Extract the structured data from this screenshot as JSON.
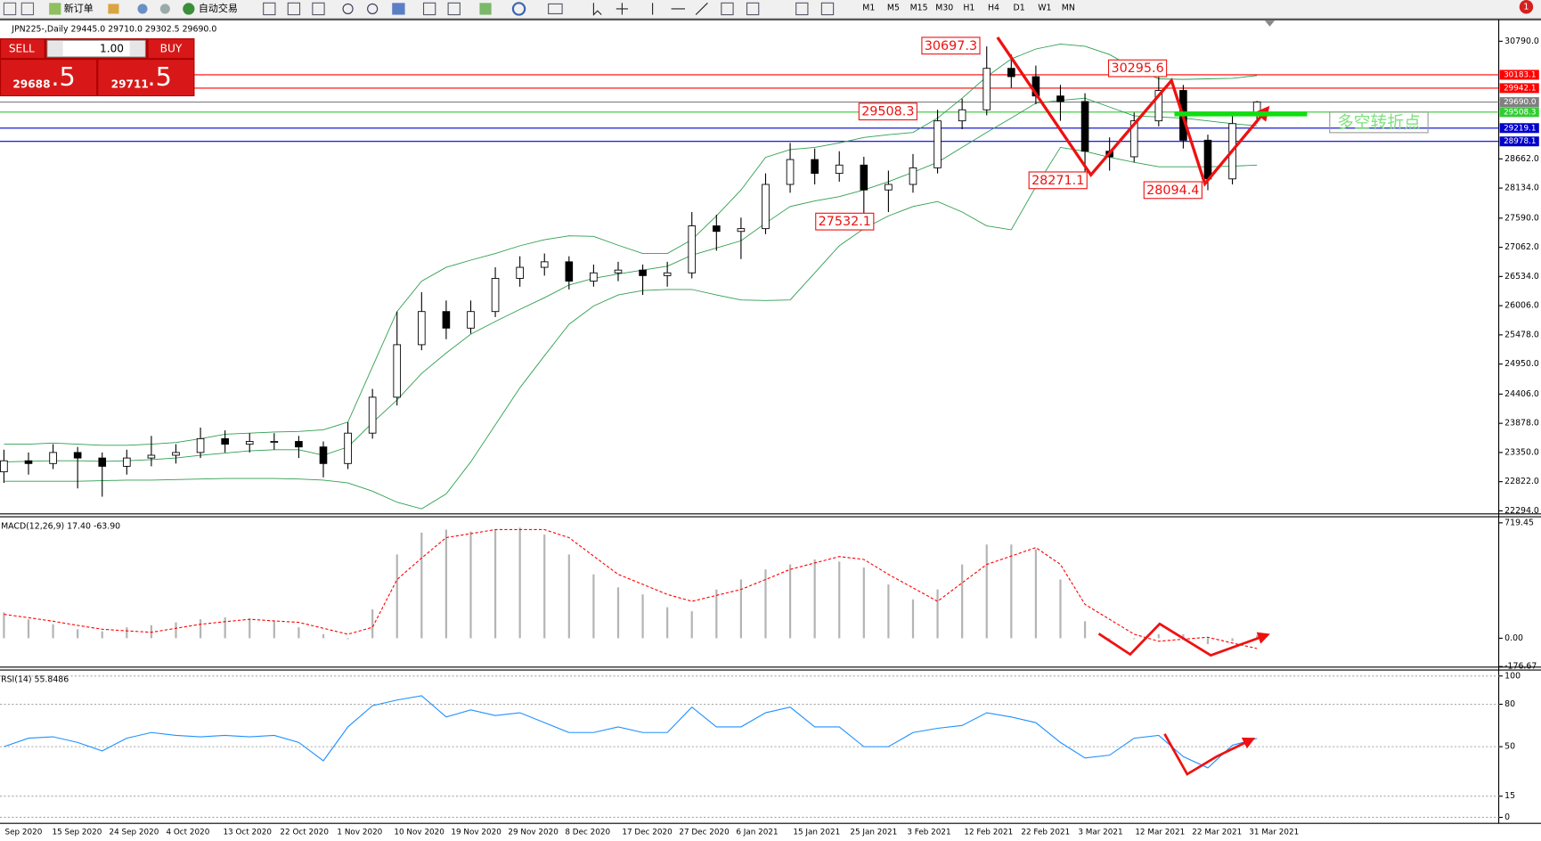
{
  "toolbar": {
    "buttons": [
      "新订单",
      "自动交易"
    ],
    "timeframes": [
      "M1",
      "M5",
      "M15",
      "M30",
      "H1",
      "H4",
      "D1",
      "W1",
      "MN"
    ],
    "notification": "1"
  },
  "trade_panel": {
    "sell": "SELL",
    "buy": "BUY",
    "lot": "1.00",
    "sell_price": "29688",
    "sell_pips": ".5",
    "buy_price": "29711",
    "buy_pips": ".5"
  },
  "chart_data": [
    {
      "type": "candlestick",
      "title": "JPN225-,Daily 29445.0 29710.0 29302.5 29690.0",
      "up_color": "#ffffff",
      "down_color": "#000000",
      "open": [
        23000,
        23200,
        23150,
        23350,
        23250,
        23100,
        23250,
        23300,
        23350,
        23600,
        23500,
        23550,
        23550,
        23450,
        23150,
        23700,
        24350,
        25300,
        25900,
        25600,
        25900,
        26500,
        26700,
        26800,
        26450,
        26600,
        26650,
        26550,
        26600,
        27450,
        27350,
        27400,
        28200,
        28650,
        28400,
        28550,
        28100,
        28200,
        28500,
        29350,
        29550,
        30300,
        30150,
        29800,
        29700,
        28800,
        28700,
        29350,
        29900,
        29000,
        28300,
        29445
      ],
      "high": [
        23400,
        23350,
        23500,
        23450,
        23350,
        23400,
        23650,
        23500,
        23800,
        23750,
        23700,
        23700,
        23650,
        23550,
        23900,
        24500,
        25900,
        26250,
        26100,
        26100,
        26700,
        26900,
        26950,
        26900,
        26750,
        26800,
        26750,
        26800,
        27700,
        27650,
        27600,
        28400,
        28950,
        28850,
        28800,
        28700,
        28450,
        28750,
        29550,
        29750,
        30697.3,
        30550,
        30350,
        30000,
        29850,
        29050,
        29500,
        30295.6,
        30000,
        29100,
        29450,
        29710
      ],
      "low": [
        22800,
        22950,
        23050,
        22700,
        22550,
        22950,
        23100,
        23150,
        23250,
        23350,
        23350,
        23400,
        23250,
        22900,
        23050,
        23600,
        24200,
        25200,
        25400,
        25500,
        25800,
        26350,
        26550,
        26300,
        26350,
        26450,
        26200,
        26350,
        26500,
        27000,
        26850,
        27300,
        28050,
        28200,
        28250,
        27532.1,
        27700,
        28050,
        28400,
        29200,
        29450,
        29950,
        29650,
        29350,
        28271.1,
        28450,
        28600,
        29250,
        28850,
        28094.4,
        28200,
        29302.5
      ],
      "close": [
        23200,
        23150,
        23350,
        23250,
        23100,
        23250,
        23300,
        23350,
        23600,
        23500,
        23550,
        23550,
        23450,
        23150,
        23700,
        24350,
        25300,
        25900,
        25600,
        25900,
        26500,
        26700,
        26800,
        26450,
        26600,
        26650,
        26550,
        26600,
        27450,
        27350,
        27400,
        28200,
        28650,
        28400,
        28550,
        28100,
        28200,
        28500,
        29350,
        29550,
        30300,
        30150,
        29800,
        29700,
        28800,
        28700,
        29350,
        29900,
        29000,
        28300,
        29300,
        29690
      ],
      "bands": {
        "color": "#2e9e4f",
        "upper": [
          23500,
          23500,
          23520,
          23500,
          23480,
          23480,
          23500,
          23530,
          23600,
          23680,
          23700,
          23720,
          23730,
          23760,
          23900,
          24900,
          25900,
          26450,
          26700,
          26830,
          26950,
          27090,
          27200,
          27270,
          27260,
          27100,
          26950,
          26950,
          27200,
          27630,
          28100,
          28690,
          28830,
          28870,
          28950,
          29050,
          29100,
          29140,
          29400,
          29760,
          30150,
          30470,
          30650,
          30740,
          30700,
          30550,
          30300,
          30110,
          30100,
          30110,
          30120,
          30170
        ],
        "middle": [
          23180,
          23190,
          23200,
          23200,
          23190,
          23200,
          23220,
          23250,
          23300,
          23340,
          23380,
          23400,
          23400,
          23300,
          23450,
          23890,
          24300,
          24780,
          25150,
          25490,
          25720,
          25940,
          26150,
          26380,
          26500,
          26580,
          26650,
          26720,
          26920,
          27050,
          27180,
          27500,
          27800,
          27900,
          27980,
          28100,
          28250,
          28420,
          28600,
          28870,
          29140,
          29400,
          29670,
          29720,
          29760,
          29600,
          29440,
          29420,
          29400,
          29350,
          29300,
          29260
        ],
        "lower": [
          22830,
          22830,
          22830,
          22830,
          22840,
          22850,
          22850,
          22860,
          22870,
          22880,
          22880,
          22880,
          22870,
          22850,
          22800,
          22650,
          22450,
          22330,
          22600,
          23180,
          23850,
          24520,
          25100,
          25670,
          26000,
          26200,
          26280,
          26300,
          26300,
          26200,
          26110,
          26100,
          26110,
          26600,
          27090,
          27400,
          27630,
          27800,
          27890,
          27700,
          27450,
          27380,
          28160,
          28870,
          28800,
          28690,
          28600,
          28520,
          28520,
          28520,
          28530,
          28550
        ]
      },
      "ylim": [
        22240,
        31181
      ],
      "yticks": [
        {
          "value": 30790,
          "label": "30790.0"
        },
        {
          "value": 28662,
          "label": "28662.0"
        },
        {
          "value": 28134,
          "label": "28134.0"
        },
        {
          "value": 27590,
          "label": "27590.0"
        },
        {
          "value": 27062,
          "label": "27062.0"
        },
        {
          "value": 26534,
          "label": "26534.0"
        },
        {
          "value": 26006,
          "label": "26006.0"
        },
        {
          "value": 25478,
          "label": "25478.0"
        },
        {
          "value": 24950,
          "label": "24950.0"
        },
        {
          "value": 24406,
          "label": "24406.0"
        },
        {
          "value": 23878,
          "label": "23878.0"
        },
        {
          "value": 23350,
          "label": "23350.0"
        },
        {
          "value": 22822,
          "label": "22822.0"
        },
        {
          "value": 22294,
          "label": "22294.0"
        }
      ],
      "levels": [
        {
          "value": 30183.1,
          "color": "#ff0000"
        },
        {
          "value": 29942.1,
          "color": "#ff0000"
        },
        {
          "value": 29690,
          "label": "29690.0",
          "color": "#808080"
        },
        {
          "value": 29508.3,
          "color": "#33cc33"
        },
        {
          "value": 29219.1,
          "color": "#0000cc"
        },
        {
          "value": 28978.1,
          "color": "#0000cc"
        }
      ],
      "annotations": [
        "30697.3",
        "30295.6",
        "29508.3",
        "28271.1",
        "28094.4",
        "27532.1"
      ],
      "pattern_label": "多空转折点"
    },
    {
      "type": "macd",
      "title": "MACD(12,26,9) 17.40 -63.90",
      "histogram": {
        "color": "#b4b4b4",
        "values": [
          161,
          118,
          87,
          56,
          43,
          68,
          81,
          99,
          118,
          130,
          124,
          106,
          68,
          25,
          -6,
          180,
          522,
          658,
          677,
          665,
          677,
          689,
          646,
          522,
          398,
          317,
          273,
          193,
          168,
          304,
          366,
          429,
          460,
          491,
          478,
          441,
          335,
          242,
          304,
          460,
          584,
          584,
          553,
          366,
          106,
          -6,
          -6,
          25,
          25,
          -37,
          -19,
          17.4
        ]
      },
      "signal": {
        "color": "#ff0000",
        "values": [
          149,
          128,
          106,
          80,
          56,
          46,
          37,
          62,
          87,
          103,
          118,
          108,
          99,
          62,
          25,
          68,
          366,
          500,
          627,
          652,
          677,
          677,
          677,
          627,
          512,
          398,
          336,
          273,
          230,
          267,
          304,
          366,
          429,
          469,
          509,
          491,
          398,
          314,
          230,
          345,
          460,
          512,
          565,
          460,
          211,
          118,
          25,
          -19,
          -6,
          6,
          -30,
          -63.9
        ]
      },
      "ylim": [
        -180,
        757
      ],
      "yticks": [
        719.45,
        {
          "value": 0,
          "label": "0.00"
        },
        -176.67
      ]
    },
    {
      "type": "line",
      "title": "RSI(14) 55.8486",
      "color": "#1e90ff",
      "values": [
        50,
        56,
        57,
        53,
        47,
        56,
        60,
        58,
        57,
        58,
        57,
        58,
        53,
        40,
        64,
        79,
        83,
        86,
        71,
        76,
        72,
        74,
        67,
        60,
        60,
        64,
        60,
        60,
        78,
        64,
        64,
        74,
        78,
        64,
        64,
        50,
        50,
        60,
        63,
        65,
        74,
        71,
        67,
        53,
        42,
        44,
        56,
        58,
        43,
        35,
        51,
        55.8486
      ],
      "ylim": [
        -4.2,
        104.2
      ],
      "yticks": [
        0,
        15,
        50,
        80,
        100
      ],
      "grid": true,
      "date_labels": [
        "Sep 2020",
        "15 Sep 2020",
        "24 Sep 2020",
        "4 Oct 2020",
        "13 Oct 2020",
        "22 Oct 2020",
        "1 Nov 2020",
        "10 Nov 2020",
        "19 Nov 2020",
        "29 Nov 2020",
        "8 Dec 2020",
        "17 Dec 2020",
        "27 Dec 2020",
        "6 Jan 2021",
        "15 Jan 2021",
        "25 Jan 2021",
        "3 Feb 2021",
        "12 Feb 2021",
        "22 Feb 2021",
        "3 Mar 2021",
        "12 Mar 2021",
        "22 Mar 2021",
        "31 Mar 2021"
      ]
    }
  ]
}
